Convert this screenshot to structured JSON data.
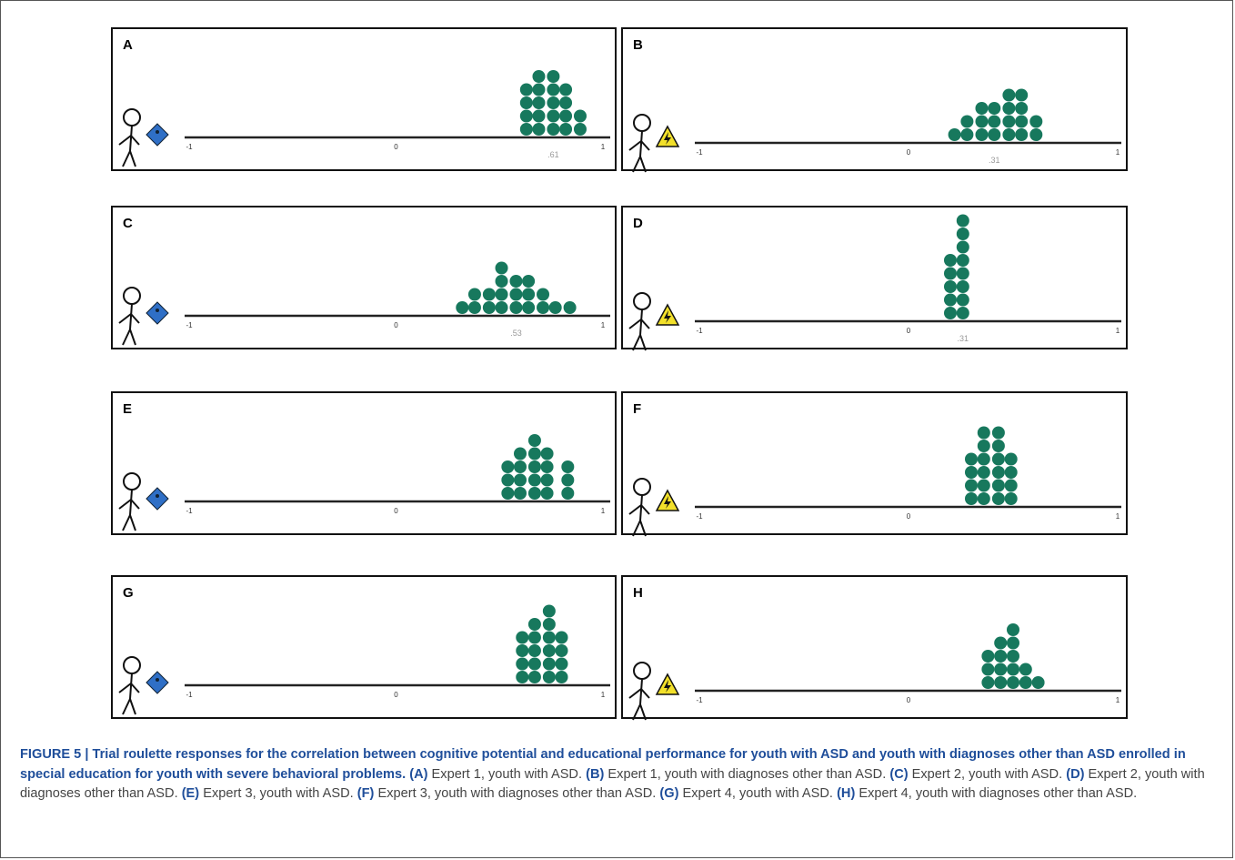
{
  "axis_ticks": [
    -1,
    0,
    1
  ],
  "panels": [
    {
      "letter": "A",
      "icon": "diamond",
      "note": ".61",
      "dots": [
        {
          "x": 0.63,
          "n": 4
        },
        {
          "x": 0.69,
          "n": 5
        },
        {
          "x": 0.76,
          "n": 5
        },
        {
          "x": 0.82,
          "n": 4
        },
        {
          "x": 0.89,
          "n": 2
        }
      ]
    },
    {
      "letter": "B",
      "icon": "triangle",
      "note": ".31",
      "dots": [
        {
          "x": 0.22,
          "n": 1
        },
        {
          "x": 0.28,
          "n": 2
        },
        {
          "x": 0.35,
          "n": 3
        },
        {
          "x": 0.41,
          "n": 3
        },
        {
          "x": 0.48,
          "n": 4
        },
        {
          "x": 0.54,
          "n": 4
        },
        {
          "x": 0.61,
          "n": 2
        }
      ]
    },
    {
      "letter": "C",
      "icon": "diamond",
      "note": ".53",
      "dots": [
        {
          "x": 0.32,
          "n": 1
        },
        {
          "x": 0.38,
          "n": 2
        },
        {
          "x": 0.45,
          "n": 2
        },
        {
          "x": 0.51,
          "n": 4
        },
        {
          "x": 0.58,
          "n": 3
        },
        {
          "x": 0.64,
          "n": 3
        },
        {
          "x": 0.71,
          "n": 2
        },
        {
          "x": 0.77,
          "n": 1
        },
        {
          "x": 0.84,
          "n": 1
        }
      ]
    },
    {
      "letter": "D",
      "icon": "triangle",
      "note": ".31",
      "dots": [
        {
          "x": 0.2,
          "n": 5
        },
        {
          "x": 0.26,
          "n": 8
        }
      ]
    },
    {
      "letter": "E",
      "icon": "diamond",
      "dots": [
        {
          "x": 0.54,
          "n": 3
        },
        {
          "x": 0.6,
          "n": 4
        },
        {
          "x": 0.67,
          "n": 5
        },
        {
          "x": 0.73,
          "n": 4
        },
        {
          "x": 0.83,
          "n": 3
        }
      ]
    },
    {
      "letter": "F",
      "icon": "triangle",
      "dots": [
        {
          "x": 0.3,
          "n": 4
        },
        {
          "x": 0.36,
          "n": 6
        },
        {
          "x": 0.43,
          "n": 6
        },
        {
          "x": 0.49,
          "n": 4
        }
      ]
    },
    {
      "letter": "G",
      "icon": "diamond",
      "dots": [
        {
          "x": 0.61,
          "n": 4
        },
        {
          "x": 0.67,
          "n": 5
        },
        {
          "x": 0.74,
          "n": 6
        },
        {
          "x": 0.8,
          "n": 4
        }
      ]
    },
    {
      "letter": "H",
      "icon": "triangle",
      "dots": [
        {
          "x": 0.38,
          "n": 3
        },
        {
          "x": 0.44,
          "n": 4
        },
        {
          "x": 0.5,
          "n": 5
        },
        {
          "x": 0.56,
          "n": 2
        },
        {
          "x": 0.62,
          "n": 1
        }
      ]
    }
  ],
  "caption": {
    "title": "FIGURE 5 | Trial roulette responses for the correlation between cognitive potential and educational performance for youth with ASD and youth with diagnoses other than ASD enrolled in special education for youth with severe behavioral problems.",
    "items": [
      {
        "label": "(A)",
        "text": "Expert 1, youth with ASD."
      },
      {
        "label": "(B)",
        "text": "Expert 1, youth with diagnoses other than ASD."
      },
      {
        "label": "(C)",
        "text": "Expert 2, youth with ASD."
      },
      {
        "label": "(D)",
        "text": "Expert 2, youth with diagnoses other than ASD."
      },
      {
        "label": "(E)",
        "text": "Expert 3, youth with ASD."
      },
      {
        "label": "(F)",
        "text": "Expert 3, youth with diagnoses other than ASD."
      },
      {
        "label": "(G)",
        "text": "Expert 4, youth with ASD."
      },
      {
        "label": "(H)",
        "text": "Expert 4, youth with diagnoses other than ASD."
      }
    ]
  }
}
